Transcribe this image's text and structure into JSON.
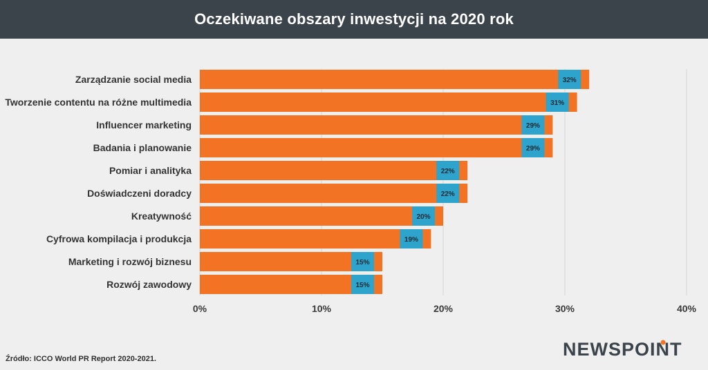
{
  "header": {
    "title": "Oczekiwane obszary inwestycji na 2020 rok"
  },
  "footer": {
    "source": "Źródło: ICCO World PR Report 2020-2021."
  },
  "brand": {
    "logo_text": "NEWSPOINT"
  },
  "colors": {
    "bar": "#f27323",
    "label_bg": "#2ea3cc",
    "header_bg": "#3b434b",
    "grid": "#d4d4d4"
  },
  "chart_data": {
    "type": "bar",
    "orientation": "horizontal",
    "title": "Oczekiwane obszary inwestycji na 2020 rok",
    "categories": [
      "Zarządzanie social media",
      "Tworzenie contentu na różne multimedia",
      "Influencer marketing",
      "Badania i planowanie",
      "Pomiar i analityka",
      "Doświadczeni doradcy",
      "Kreatywność",
      "Cyfrowa kompilacja i produkcja",
      "Marketing i rozwój biznesu",
      "Rozwój zawodowy"
    ],
    "values": [
      32,
      31,
      29,
      29,
      22,
      22,
      20,
      19,
      15,
      15
    ],
    "value_labels": [
      "32%",
      "31%",
      "29%",
      "29%",
      "22%",
      "22%",
      "20%",
      "19%",
      "15%",
      "15%"
    ],
    "xlim": [
      0,
      40
    ],
    "x_ticks": [
      0,
      10,
      20,
      30,
      40
    ],
    "x_tick_labels": [
      "0%",
      "10%",
      "20%",
      "30%",
      "40%"
    ],
    "grid": true
  }
}
